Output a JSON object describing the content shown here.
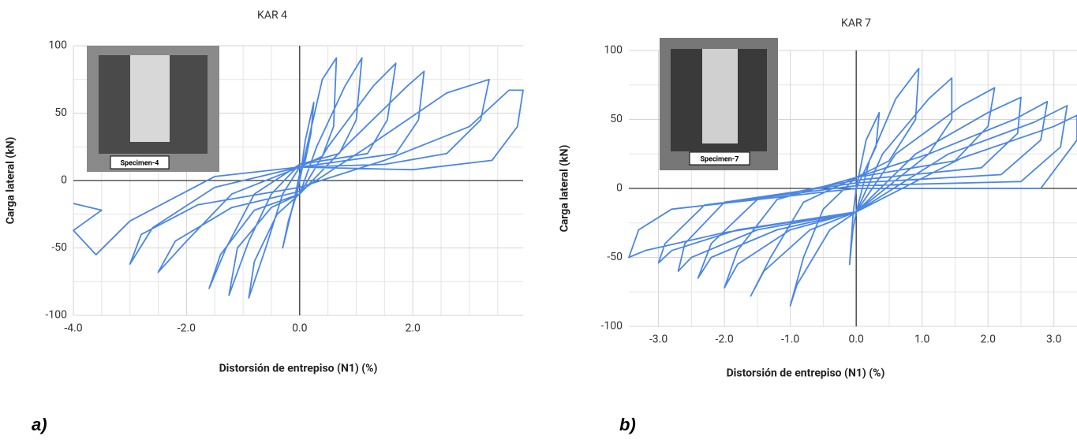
{
  "chart_data": [
    {
      "type": "line",
      "title": "KAR 4",
      "x_label": "Distorsión de entrepiso (N1) (%)",
      "y_label": "Carga lateral (kN)",
      "inset_label": "Specimen-4",
      "panel_label": "a)",
      "color": "#4a86e8",
      "grid": true,
      "xlim": [
        -4,
        3.95
      ],
      "ylim": [
        -100,
        100
      ],
      "xticks": [
        {
          "value": -4,
          "label": "-4.0"
        },
        {
          "value": -2,
          "label": "-2.0"
        },
        {
          "value": 0,
          "label": "0.0"
        },
        {
          "value": 2,
          "label": "2.0"
        }
      ],
      "yticks": [
        100,
        50,
        0,
        -50,
        -100
      ],
      "minor_xticks": [
        -3.5,
        -3,
        -2.5,
        -1.5,
        -1,
        -0.5,
        0.5,
        1,
        1.5,
        2.5,
        3,
        3.5
      ],
      "minor_yticks": [
        75,
        25,
        -25,
        -75
      ],
      "x": [
        0,
        0.1,
        0.25,
        0.2,
        0.1,
        0,
        -0.1,
        -0.3,
        -0.2,
        -0.05,
        0.1,
        0.4,
        0.65,
        0.6,
        0.4,
        0,
        -0.3,
        -0.6,
        -0.9,
        -0.8,
        -0.4,
        0,
        0.3,
        0.8,
        1.1,
        1.0,
        0.7,
        0,
        -0.5,
        -0.9,
        -1.25,
        -1.1,
        -0.5,
        0,
        0.5,
        1.3,
        1.7,
        1.55,
        1.2,
        0,
        -0.8,
        -1.3,
        -1.6,
        -1.4,
        -0.8,
        0,
        0.8,
        1.9,
        2.2,
        2.1,
        1.7,
        0,
        -1.2,
        -2.0,
        -2.5,
        -2.2,
        -1.2,
        0,
        1.2,
        2.6,
        3.35,
        3.2,
        2.6,
        1.5,
        0,
        -1.5,
        -2.6,
        -3.0,
        -2.8,
        -1.8,
        0,
        1.5,
        3.0,
        3.7,
        3.95,
        3.85,
        3.4,
        2.0,
        0,
        -1.5,
        -3.0,
        -3.6,
        -4.0,
        -3.5,
        -4.0
      ],
      "values": [
        0,
        30,
        58,
        35,
        15,
        5,
        -15,
        -50,
        -30,
        -10,
        20,
        75,
        91,
        40,
        18,
        10,
        -10,
        -50,
        -87,
        -60,
        -25,
        -10,
        25,
        70,
        91,
        45,
        20,
        12,
        -10,
        -45,
        -85,
        -50,
        -20,
        -10,
        25,
        70,
        87,
        45,
        20,
        12,
        -10,
        -50,
        -80,
        -55,
        -22,
        -10,
        25,
        70,
        81,
        45,
        20,
        10,
        -10,
        -45,
        -68,
        -45,
        -20,
        -8,
        25,
        65,
        75,
        45,
        20,
        12,
        10,
        -5,
        -35,
        -62,
        -40,
        -18,
        -5,
        15,
        40,
        67,
        67,
        40,
        15,
        8,
        10,
        3,
        -30,
        -55,
        -37,
        -22,
        -17
      ]
    },
    {
      "type": "line",
      "title": "KAR 7",
      "x_label": "Distorsión de entrepiso (N1) (%)",
      "y_label": "Carga lateral (kN)",
      "inset_label": "Specimen-7",
      "panel_label": "b)",
      "color": "#4a86e8",
      "grid": true,
      "xlim": [
        -3.45,
        3.35
      ],
      "ylim": [
        -100,
        100
      ],
      "xticks": [
        {
          "value": -3,
          "label": "-3.0"
        },
        {
          "value": -2,
          "label": "-2.0"
        },
        {
          "value": -1,
          "label": "-1.0"
        },
        {
          "value": 0,
          "label": "0.0"
        },
        {
          "value": 1,
          "label": "1.0"
        },
        {
          "value": 2,
          "label": "2.0"
        },
        {
          "value": 3,
          "label": "3.0"
        }
      ],
      "yticks": [
        100,
        50,
        0,
        -50,
        -100
      ],
      "minor_xticks": [
        -2.5,
        -1.5,
        -0.5,
        0.5,
        1.5,
        2.5
      ],
      "minor_yticks": [
        75,
        25,
        -25,
        -75
      ],
      "x": [
        0,
        0.15,
        0.35,
        0.3,
        0.1,
        0,
        -0.05,
        -0.1,
        -0.05,
        0,
        0.2,
        0.6,
        0.95,
        0.9,
        0.5,
        0,
        -0.5,
        -0.8,
        -1.0,
        -0.9,
        -0.4,
        0,
        0.4,
        1.1,
        1.45,
        1.45,
        1.1,
        0,
        -0.8,
        -1.3,
        -1.6,
        -1.4,
        -0.7,
        0,
        0.6,
        1.6,
        2.1,
        2.0,
        1.5,
        0,
        -1.2,
        -1.8,
        -2.0,
        -1.8,
        -1.0,
        0,
        0.9,
        2.0,
        2.5,
        2.45,
        1.9,
        0,
        -1.5,
        -2.2,
        -2.4,
        -2.2,
        -1.2,
        0,
        1.1,
        2.4,
        2.9,
        2.8,
        2.2,
        0,
        -2.0,
        -2.6,
        -2.7,
        -2.5,
        -1.5,
        0,
        1.4,
        2.7,
        3.2,
        3.1,
        2.5,
        0,
        -2.3,
        -2.9,
        -3.0,
        -2.8,
        -1.8,
        0,
        1.6,
        3.0,
        3.35,
        3.35,
        2.8,
        0,
        -2.8,
        -3.3,
        -3.45,
        -3.2,
        -2.0,
        0
      ],
      "values": [
        0,
        35,
        55,
        30,
        10,
        0,
        -20,
        -55,
        -30,
        -17,
        20,
        65,
        87,
        50,
        20,
        8,
        -15,
        -50,
        -85,
        -70,
        -30,
        -17,
        25,
        65,
        80,
        50,
        25,
        8,
        -10,
        -50,
        -78,
        -60,
        -30,
        -17,
        25,
        60,
        73,
        45,
        20,
        8,
        -8,
        -45,
        -72,
        -55,
        -30,
        -17,
        25,
        55,
        66,
        40,
        15,
        6,
        -8,
        -40,
        -65,
        -50,
        -30,
        -17,
        25,
        50,
        63,
        35,
        10,
        4,
        -10,
        -40,
        -60,
        -50,
        -30,
        -17,
        25,
        48,
        60,
        30,
        5,
        2,
        -12,
        -40,
        -54,
        -45,
        -30,
        -17,
        22,
        45,
        53,
        35,
        0,
        0,
        -15,
        -30,
        -50,
        -45,
        -32,
        -17
      ]
    }
  ]
}
